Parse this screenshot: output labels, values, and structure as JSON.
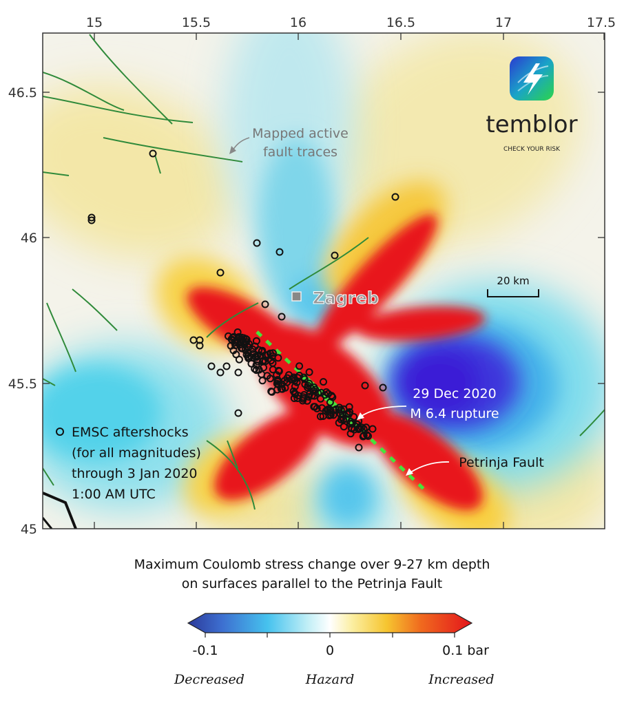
{
  "map": {
    "lon_ticks": [
      "15",
      "15.5",
      "16",
      "16.5",
      "17",
      "17.5"
    ],
    "lat_ticks": [
      "46.5",
      "46",
      "45.5",
      "45"
    ],
    "city_label": "Zagreb",
    "fault_callout": [
      "Mapped active",
      "fault traces"
    ],
    "rupture_label": [
      "29 Dec 2020",
      "M 6.4 rupture"
    ],
    "fault_name": "Petrinja Fault",
    "aftershock_legend": [
      "EMSC aftershocks",
      "(for all magnitudes)",
      "through 3 Jan 2020",
      "1:00 AM UTC"
    ],
    "scale_bar": "20 km",
    "logo": {
      "name": "temblor",
      "tagline": "CHECK YOUR RISK"
    },
    "colors": {
      "increased": "#e8141c",
      "decreased": "#3a1fd6",
      "neutral": "#f8f8f4",
      "fault": "#2f8a3a",
      "rupture": "#47e23b"
    }
  },
  "caption": {
    "line1": "Maximum Coulomb stress change over 9-27 km depth",
    "line2": "on surfaces parallel to the Petrinja Fault"
  },
  "colorbar": {
    "min_label": "-0.1",
    "mid_label": "0",
    "max_label": "0.1 bar",
    "left_word": "Decreased",
    "mid_word": "Hazard",
    "right_word": "Increased"
  }
}
